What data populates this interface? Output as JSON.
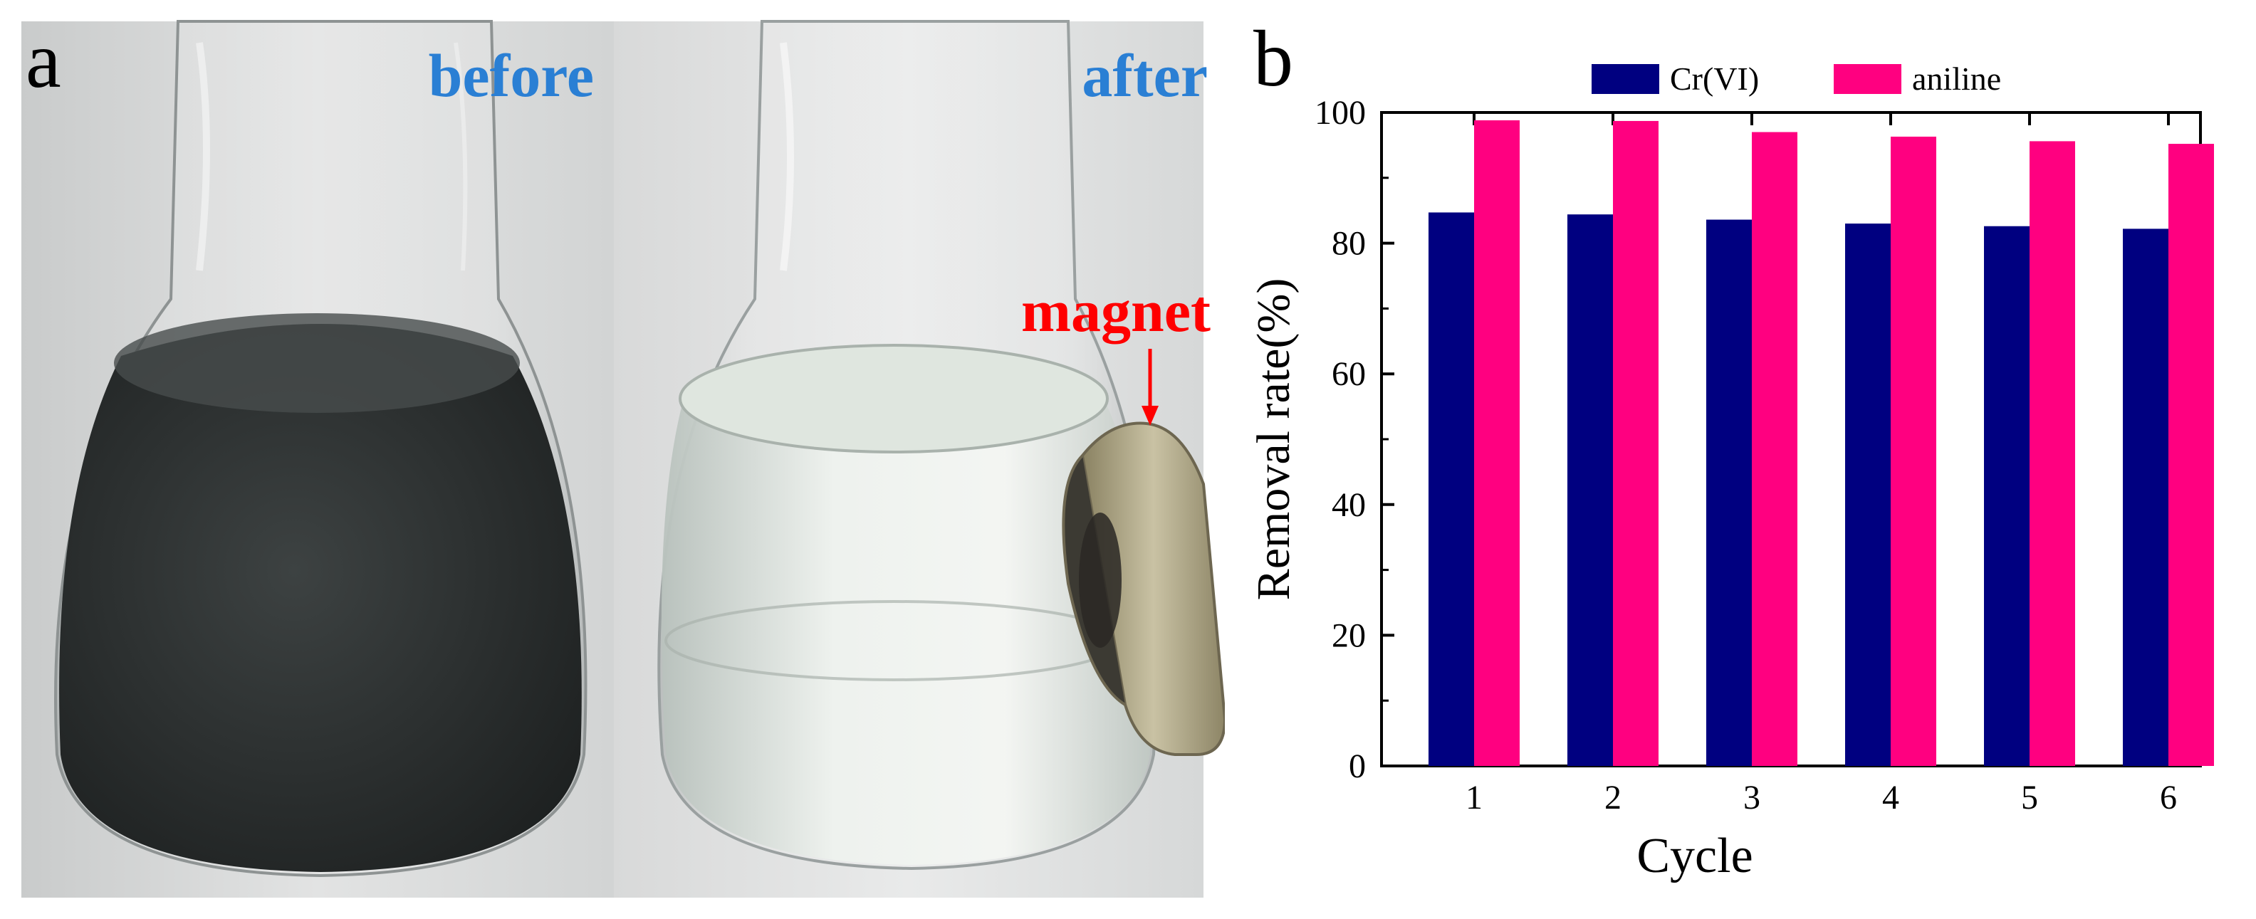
{
  "panel_a": {
    "label": "a",
    "left_caption": "before",
    "right_caption": "after",
    "magnet_label": "magnet",
    "colors": {
      "caption": "#2a7fd4",
      "magnet_label": "#ff0000",
      "solution_dark": "#2b2f2f",
      "solution_clear": "#e6ece6",
      "background": "#d9dbdb"
    }
  },
  "panel_b": {
    "label": "b"
  },
  "chart_data": {
    "type": "bar",
    "categories": [
      "1",
      "2",
      "3",
      "4",
      "5",
      "6"
    ],
    "series": [
      {
        "name": "Cr(VI)",
        "values": [
          84.7,
          84.4,
          83.6,
          83.0,
          82.6,
          82.2
        ],
        "color": "#000080"
      },
      {
        "name": "aniline",
        "values": [
          98.8,
          98.7,
          97.0,
          96.3,
          95.6,
          95.2
        ],
        "color": "#ff0080"
      }
    ],
    "title": "",
    "xlabel": "Cycle",
    "ylabel": "Removal rate(%)",
    "ylim": [
      0,
      100
    ],
    "yticks": [
      0,
      20,
      40,
      60,
      80,
      100
    ],
    "grid": false,
    "legend_position": "top"
  }
}
